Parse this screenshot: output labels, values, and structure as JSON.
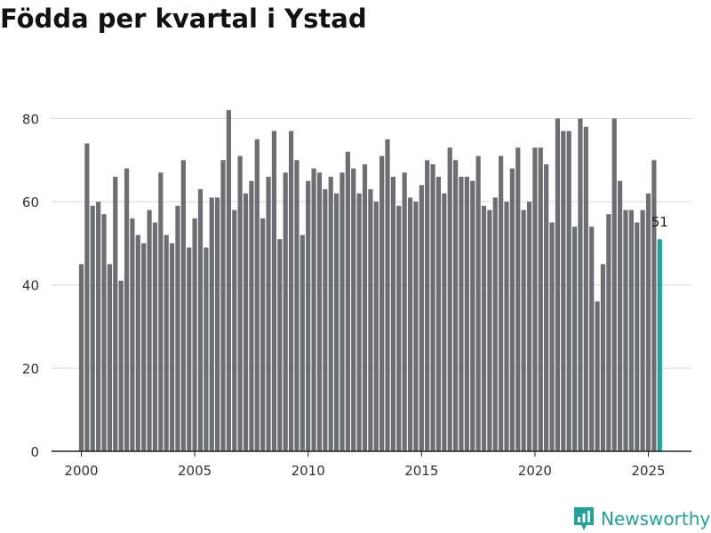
{
  "chart_data": {
    "type": "bar",
    "title": "Födda per kvartal i Ystad",
    "xlabel": "",
    "ylabel": "",
    "ylim": [
      0,
      85
    ],
    "yticks": [
      0,
      20,
      40,
      60,
      80
    ],
    "xticks": [
      2000,
      2005,
      2010,
      2015,
      2020,
      2025
    ],
    "start_year": 2000,
    "periods_per_year": 4,
    "bar_color": "#6d6e72",
    "highlight_color": "#22a39a",
    "highlight_label": "51",
    "values": [
      45,
      74,
      59,
      60,
      57,
      45,
      66,
      41,
      68,
      56,
      52,
      50,
      58,
      55,
      67,
      52,
      50,
      59,
      70,
      49,
      56,
      63,
      49,
      61,
      61,
      70,
      82,
      58,
      71,
      62,
      65,
      75,
      56,
      66,
      77,
      51,
      67,
      77,
      70,
      52,
      65,
      68,
      67,
      63,
      66,
      62,
      67,
      72,
      68,
      62,
      69,
      63,
      60,
      71,
      75,
      66,
      59,
      67,
      61,
      60,
      64,
      70,
      69,
      66,
      62,
      73,
      70,
      66,
      66,
      65,
      71,
      59,
      58,
      61,
      71,
      60,
      68,
      73,
      58,
      60,
      73,
      73,
      69,
      55,
      80,
      77,
      77,
      54,
      80,
      78,
      54,
      36,
      45,
      57,
      80,
      65,
      58,
      58,
      55,
      58,
      62,
      70,
      51
    ]
  },
  "brand": {
    "name": "Newsworthy"
  }
}
